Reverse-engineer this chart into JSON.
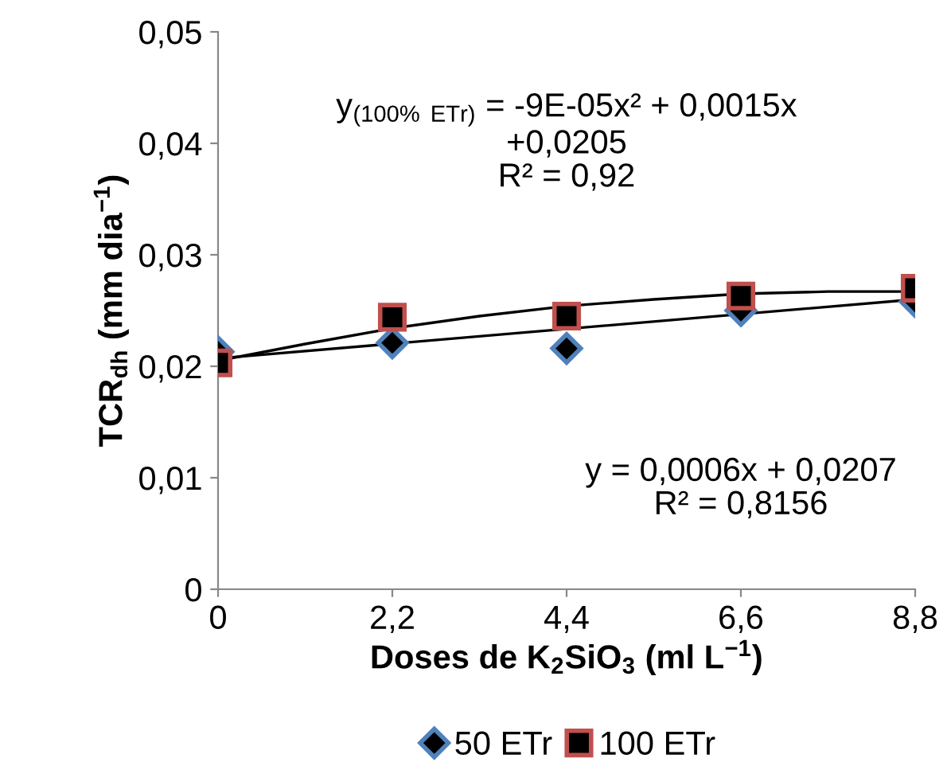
{
  "chart_data": {
    "type": "scatter",
    "xlabel": "Doses de K$_{2}$SiO$_{3}$ (ml L$^{−1}$)",
    "ylabel": "TCR$_{dh}$ (mm dia$^{−1}$)",
    "x": [
      0,
      2.2,
      4.4,
      6.6,
      8.8
    ],
    "xlim": [
      0,
      8.8
    ],
    "xticks": [
      {
        "value": 0,
        "label": "0"
      },
      {
        "value": 2.2,
        "label": "2,2"
      },
      {
        "value": 4.4,
        "label": "4,4"
      },
      {
        "value": 6.6,
        "label": "6,6"
      },
      {
        "value": 8.8,
        "label": "8,8"
      }
    ],
    "ylim": [
      0,
      0.05
    ],
    "yticks": [
      {
        "value": 0,
        "label": "0"
      },
      {
        "value": 0.01,
        "label": "0,01"
      },
      {
        "value": 0.02,
        "label": "0,02"
      },
      {
        "value": 0.03,
        "label": "0,03"
      },
      {
        "value": 0.04,
        "label": "0,04"
      },
      {
        "value": 0.05,
        "label": "0,05"
      }
    ],
    "series": [
      {
        "type": "line",
        "color": "#000000",
        "marker": "none",
        "x": [
          0,
          8.8
        ],
        "values": [
          0.0207,
          0.026
        ]
      },
      {
        "type": "line",
        "color": "#000000",
        "marker": "none",
        "x": [
          0,
          1.1,
          2.2,
          3.3,
          4.4,
          5.5,
          6.6,
          7.7,
          8.8
        ],
        "values": [
          0.0205,
          0.022,
          0.0234,
          0.0245,
          0.0254,
          0.026,
          0.0265,
          0.0267,
          0.0267
        ]
      },
      {
        "name": "50 ETr",
        "color": "#4f81bd",
        "marker": "diamond",
        "values": [
          0.0213,
          0.0221,
          0.0216,
          0.025,
          0.0258
        ]
      },
      {
        "name": "100 ETr",
        "color": "#c0504d",
        "marker": "square",
        "values": [
          0.0203,
          0.0244,
          0.0245,
          0.0263,
          0.027
        ]
      }
    ],
    "annotations": [
      "y$_{(100% ETr)}$ = -9E-05x² + 0,0015x\n+0,0205\nR² = 0,92",
      "y = 0,0006x + 0,0207\nR² = 0,8156"
    ],
    "grid": false,
    "legend": "bottom"
  }
}
